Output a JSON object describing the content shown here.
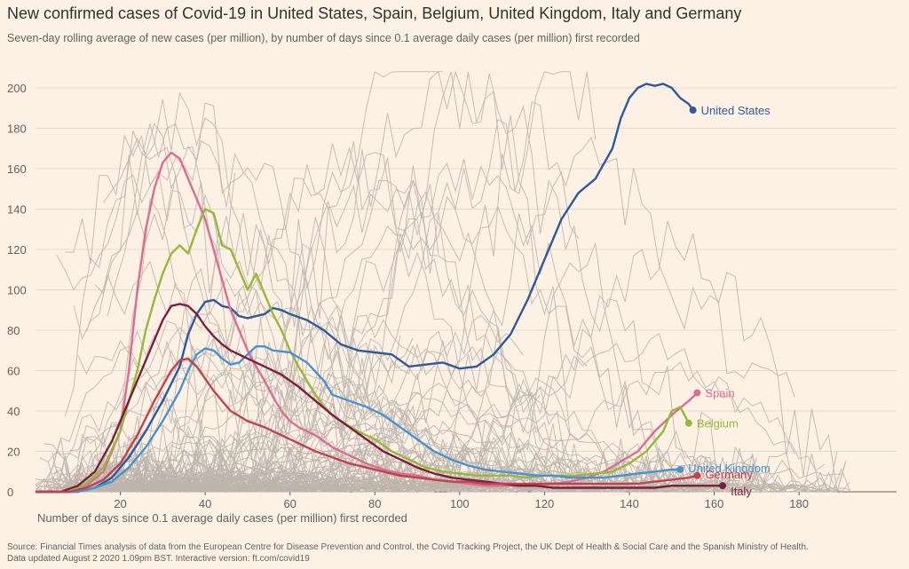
{
  "header": {
    "title": "New confirmed cases of Covid-19 in United States, Spain, Belgium, United Kingdom, Italy and Germany",
    "subtitle": "Seven-day rolling average of new cases (per million), by number of days since 0.1 average daily cases (per million) first recorded"
  },
  "footer": {
    "source": "Source: Financial Times analysis of data from the European Centre for Disease Prevention and Control, the Covid Tracking Project, the UK Dept of Health & Social Care and the Spanish Ministry of Health.",
    "updated": "Data updated August 2 2020 1.09pm BST. Interactive version: ft.com/covid19"
  },
  "chart_data": {
    "type": "line",
    "title": "New confirmed cases of Covid-19 in United States, Spain, Belgium, United Kingdom, Italy and Germany",
    "xlabel": "Number of days since 0.1 average daily cases (per million) first recorded",
    "ylabel": "",
    "xlim": [
      0,
      203
    ],
    "ylim": [
      0,
      200
    ],
    "x_ticks": [
      20,
      40,
      60,
      80,
      100,
      120,
      140,
      160,
      180
    ],
    "y_ticks": [
      0,
      20,
      40,
      60,
      80,
      100,
      120,
      140,
      160,
      180,
      200
    ],
    "grid": "horizontal",
    "background_lines_color": "#bdb4ab",
    "series": [
      {
        "name": "United States",
        "color": "#2e5a9c",
        "points": [
          [
            0,
            0
          ],
          [
            10,
            0
          ],
          [
            14,
            2
          ],
          [
            18,
            7
          ],
          [
            22,
            17
          ],
          [
            26,
            30
          ],
          [
            30,
            45
          ],
          [
            34,
            62
          ],
          [
            36,
            78
          ],
          [
            38,
            88
          ],
          [
            40,
            94
          ],
          [
            42,
            95
          ],
          [
            44,
            92
          ],
          [
            46,
            91
          ],
          [
            48,
            87
          ],
          [
            50,
            86
          ],
          [
            52,
            87
          ],
          [
            54,
            88
          ],
          [
            56,
            91
          ],
          [
            58,
            90
          ],
          [
            60,
            88
          ],
          [
            64,
            85
          ],
          [
            68,
            80
          ],
          [
            72,
            73
          ],
          [
            76,
            70
          ],
          [
            80,
            69
          ],
          [
            84,
            68
          ],
          [
            88,
            62
          ],
          [
            92,
            63
          ],
          [
            96,
            64
          ],
          [
            100,
            61
          ],
          [
            104,
            62
          ],
          [
            108,
            68
          ],
          [
            112,
            78
          ],
          [
            116,
            95
          ],
          [
            120,
            115
          ],
          [
            124,
            135
          ],
          [
            128,
            148
          ],
          [
            132,
            155
          ],
          [
            136,
            170
          ],
          [
            138,
            185
          ],
          [
            140,
            195
          ],
          [
            142,
            200
          ],
          [
            144,
            202
          ],
          [
            146,
            201
          ],
          [
            148,
            202
          ],
          [
            150,
            200
          ],
          [
            152,
            195
          ],
          [
            154,
            192
          ],
          [
            155,
            189
          ]
        ]
      },
      {
        "name": "Spain",
        "color": "#db6d91",
        "points": [
          [
            0,
            0
          ],
          [
            8,
            0
          ],
          [
            12,
            3
          ],
          [
            16,
            10
          ],
          [
            20,
            30
          ],
          [
            22,
            60
          ],
          [
            24,
            100
          ],
          [
            26,
            130
          ],
          [
            28,
            150
          ],
          [
            30,
            163
          ],
          [
            32,
            168
          ],
          [
            34,
            165
          ],
          [
            36,
            155
          ],
          [
            38,
            145
          ],
          [
            40,
            135
          ],
          [
            42,
            120
          ],
          [
            44,
            105
          ],
          [
            46,
            90
          ],
          [
            48,
            80
          ],
          [
            50,
            70
          ],
          [
            52,
            62
          ],
          [
            54,
            55
          ],
          [
            56,
            47
          ],
          [
            58,
            40
          ],
          [
            60,
            35
          ],
          [
            62,
            32
          ],
          [
            66,
            28
          ],
          [
            70,
            22
          ],
          [
            74,
            18
          ],
          [
            78,
            14
          ],
          [
            82,
            11
          ],
          [
            86,
            9
          ],
          [
            90,
            8
          ],
          [
            94,
            6
          ],
          [
            98,
            5
          ],
          [
            102,
            4
          ],
          [
            106,
            3
          ],
          [
            110,
            3
          ],
          [
            114,
            3
          ],
          [
            118,
            3
          ],
          [
            122,
            4
          ],
          [
            126,
            5
          ],
          [
            130,
            7
          ],
          [
            134,
            10
          ],
          [
            138,
            15
          ],
          [
            142,
            20
          ],
          [
            146,
            30
          ],
          [
            150,
            38
          ],
          [
            154,
            45
          ],
          [
            156,
            49
          ]
        ]
      },
      {
        "name": "Belgium",
        "color": "#96b83b",
        "points": [
          [
            0,
            0
          ],
          [
            8,
            0
          ],
          [
            12,
            4
          ],
          [
            16,
            12
          ],
          [
            20,
            30
          ],
          [
            24,
            60
          ],
          [
            26,
            80
          ],
          [
            28,
            95
          ],
          [
            30,
            108
          ],
          [
            32,
            118
          ],
          [
            34,
            122
          ],
          [
            36,
            118
          ],
          [
            38,
            130
          ],
          [
            40,
            140
          ],
          [
            42,
            138
          ],
          [
            44,
            122
          ],
          [
            46,
            120
          ],
          [
            48,
            110
          ],
          [
            50,
            100
          ],
          [
            52,
            108
          ],
          [
            54,
            98
          ],
          [
            56,
            88
          ],
          [
            58,
            80
          ],
          [
            60,
            70
          ],
          [
            62,
            62
          ],
          [
            64,
            55
          ],
          [
            66,
            48
          ],
          [
            68,
            42
          ],
          [
            70,
            38
          ],
          [
            72,
            35
          ],
          [
            76,
            30
          ],
          [
            80,
            26
          ],
          [
            84,
            20
          ],
          [
            88,
            16
          ],
          [
            92,
            12
          ],
          [
            96,
            10
          ],
          [
            100,
            9
          ],
          [
            104,
            8
          ],
          [
            108,
            8
          ],
          [
            112,
            8
          ],
          [
            116,
            7
          ],
          [
            120,
            8
          ],
          [
            124,
            8
          ],
          [
            128,
            8
          ],
          [
            132,
            9
          ],
          [
            136,
            10
          ],
          [
            140,
            14
          ],
          [
            144,
            20
          ],
          [
            148,
            30
          ],
          [
            150,
            40
          ],
          [
            152,
            42
          ],
          [
            154,
            34
          ]
        ]
      },
      {
        "name": "United Kingdom",
        "color": "#4893cf",
        "points": [
          [
            0,
            0
          ],
          [
            10,
            0
          ],
          [
            14,
            2
          ],
          [
            18,
            5
          ],
          [
            22,
            12
          ],
          [
            26,
            22
          ],
          [
            30,
            35
          ],
          [
            34,
            50
          ],
          [
            36,
            60
          ],
          [
            38,
            68
          ],
          [
            40,
            71
          ],
          [
            42,
            70
          ],
          [
            44,
            66
          ],
          [
            46,
            63
          ],
          [
            48,
            64
          ],
          [
            50,
            68
          ],
          [
            52,
            72
          ],
          [
            54,
            72
          ],
          [
            56,
            70
          ],
          [
            60,
            69
          ],
          [
            64,
            64
          ],
          [
            68,
            55
          ],
          [
            70,
            48
          ],
          [
            74,
            45
          ],
          [
            78,
            42
          ],
          [
            82,
            38
          ],
          [
            86,
            32
          ],
          [
            90,
            26
          ],
          [
            94,
            20
          ],
          [
            98,
            16
          ],
          [
            102,
            13
          ],
          [
            106,
            11
          ],
          [
            110,
            10
          ],
          [
            114,
            9
          ],
          [
            118,
            8
          ],
          [
            122,
            8
          ],
          [
            126,
            7
          ],
          [
            130,
            7
          ],
          [
            134,
            7
          ],
          [
            138,
            8
          ],
          [
            142,
            9
          ],
          [
            146,
            10
          ],
          [
            150,
            11
          ],
          [
            152,
            11
          ]
        ]
      },
      {
        "name": "Italy",
        "color": "#7a1f3d",
        "points": [
          [
            0,
            0
          ],
          [
            6,
            0
          ],
          [
            10,
            3
          ],
          [
            14,
            10
          ],
          [
            18,
            25
          ],
          [
            22,
            45
          ],
          [
            26,
            65
          ],
          [
            30,
            85
          ],
          [
            32,
            92
          ],
          [
            34,
            93
          ],
          [
            36,
            92
          ],
          [
            38,
            88
          ],
          [
            40,
            82
          ],
          [
            42,
            77
          ],
          [
            44,
            73
          ],
          [
            46,
            70
          ],
          [
            50,
            66
          ],
          [
            54,
            62
          ],
          [
            58,
            58
          ],
          [
            62,
            52
          ],
          [
            66,
            45
          ],
          [
            70,
            38
          ],
          [
            74,
            32
          ],
          [
            78,
            26
          ],
          [
            82,
            20
          ],
          [
            86,
            16
          ],
          [
            90,
            12
          ],
          [
            94,
            9
          ],
          [
            98,
            7
          ],
          [
            102,
            6
          ],
          [
            106,
            5
          ],
          [
            110,
            4
          ],
          [
            114,
            3
          ],
          [
            118,
            3
          ],
          [
            122,
            2
          ],
          [
            126,
            2
          ],
          [
            130,
            2
          ],
          [
            134,
            2
          ],
          [
            138,
            2
          ],
          [
            142,
            2
          ],
          [
            146,
            2
          ],
          [
            150,
            3
          ],
          [
            154,
            3
          ],
          [
            158,
            3
          ],
          [
            162,
            3
          ]
        ]
      },
      {
        "name": "Germany",
        "color": "#c0424e",
        "points": [
          [
            0,
            0
          ],
          [
            8,
            0
          ],
          [
            12,
            2
          ],
          [
            16,
            6
          ],
          [
            20,
            14
          ],
          [
            24,
            28
          ],
          [
            28,
            45
          ],
          [
            32,
            60
          ],
          [
            34,
            65
          ],
          [
            36,
            66
          ],
          [
            38,
            62
          ],
          [
            40,
            56
          ],
          [
            42,
            50
          ],
          [
            44,
            45
          ],
          [
            46,
            40
          ],
          [
            50,
            35
          ],
          [
            54,
            32
          ],
          [
            58,
            28
          ],
          [
            62,
            24
          ],
          [
            66,
            20
          ],
          [
            70,
            17
          ],
          [
            74,
            14
          ],
          [
            78,
            12
          ],
          [
            82,
            10
          ],
          [
            86,
            8
          ],
          [
            90,
            7
          ],
          [
            94,
            6
          ],
          [
            98,
            5
          ],
          [
            102,
            5
          ],
          [
            106,
            4
          ],
          [
            110,
            4
          ],
          [
            114,
            4
          ],
          [
            118,
            4
          ],
          [
            122,
            4
          ],
          [
            126,
            4
          ],
          [
            130,
            4
          ],
          [
            134,
            4
          ],
          [
            138,
            4
          ],
          [
            142,
            4
          ],
          [
            146,
            5
          ],
          [
            150,
            6
          ],
          [
            154,
            7
          ],
          [
            156,
            8
          ]
        ]
      }
    ]
  }
}
